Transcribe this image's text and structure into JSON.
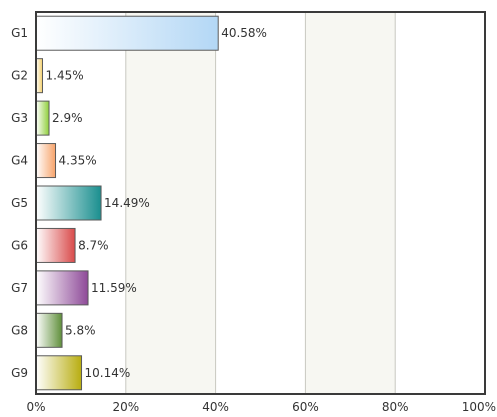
{
  "chart_data": {
    "type": "bar",
    "orientation": "horizontal",
    "categories": [
      "G1",
      "G2",
      "G3",
      "G4",
      "G5",
      "G6",
      "G7",
      "G8",
      "G9"
    ],
    "values": [
      40.58,
      1.45,
      2.9,
      4.35,
      14.49,
      8.7,
      11.59,
      5.8,
      10.14
    ],
    "value_labels": [
      "40.58%",
      "1.45%",
      "2.9%",
      "4.35%",
      "14.49%",
      "8.7%",
      "11.59%",
      "5.8%",
      "10.14%"
    ],
    "xlim": [
      0,
      100
    ],
    "x_ticks": [
      0,
      20,
      40,
      60,
      80,
      100
    ],
    "x_tick_labels": [
      "0%",
      "20%",
      "40%",
      "60%",
      "80%",
      "100%"
    ],
    "grid": true,
    "bar_colors": [
      "#b3d7f5",
      "#f3cf6a",
      "#8fcf3a",
      "#f7a36a",
      "#1a8f8f",
      "#d94a4a",
      "#8e4a98",
      "#5f8f3a",
      "#b8ad10"
    ],
    "band_colors": [
      "#ffffff",
      "#f7f7f2"
    ]
  }
}
